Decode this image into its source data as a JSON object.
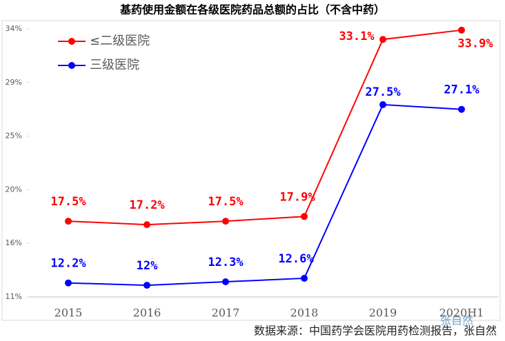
{
  "chart_data": {
    "type": "line",
    "title": "基药使用金额在各级医院药品总额的占比（不含中药）",
    "categories": [
      "2015",
      "2016",
      "2017",
      "2018",
      "2019",
      "2020H1"
    ],
    "series": [
      {
        "name": "≤二级医院",
        "color": "#ff0000",
        "values": [
          17.5,
          17.2,
          17.5,
          17.9,
          33.1,
          33.9
        ],
        "value_labels": [
          "17.5%",
          "17.2%",
          "17.5%",
          "17.9%",
          "33.1%",
          "33.9%"
        ]
      },
      {
        "name": "三级医院",
        "color": "#0000ff",
        "values": [
          12.2,
          12,
          12.3,
          12.6,
          27.5,
          27.1
        ],
        "value_labels": [
          "12.2%",
          "12%",
          "12.3%",
          "12.6%",
          "27.5%",
          "27.1%"
        ]
      }
    ],
    "ylim": [
      11,
      34
    ],
    "yticks": [
      {
        "value": 11,
        "label": "11%"
      },
      {
        "value": 15.6,
        "label": "16%"
      },
      {
        "value": 20.2,
        "label": "20%"
      },
      {
        "value": 24.8,
        "label": "25%"
      },
      {
        "value": 29.4,
        "label": "29%"
      },
      {
        "value": 34,
        "label": "34%"
      }
    ],
    "grid": false,
    "legend": "upper-left",
    "source": "数据来源：中国药学会医院用药检测报告，张自然",
    "watermark": "张自然"
  }
}
